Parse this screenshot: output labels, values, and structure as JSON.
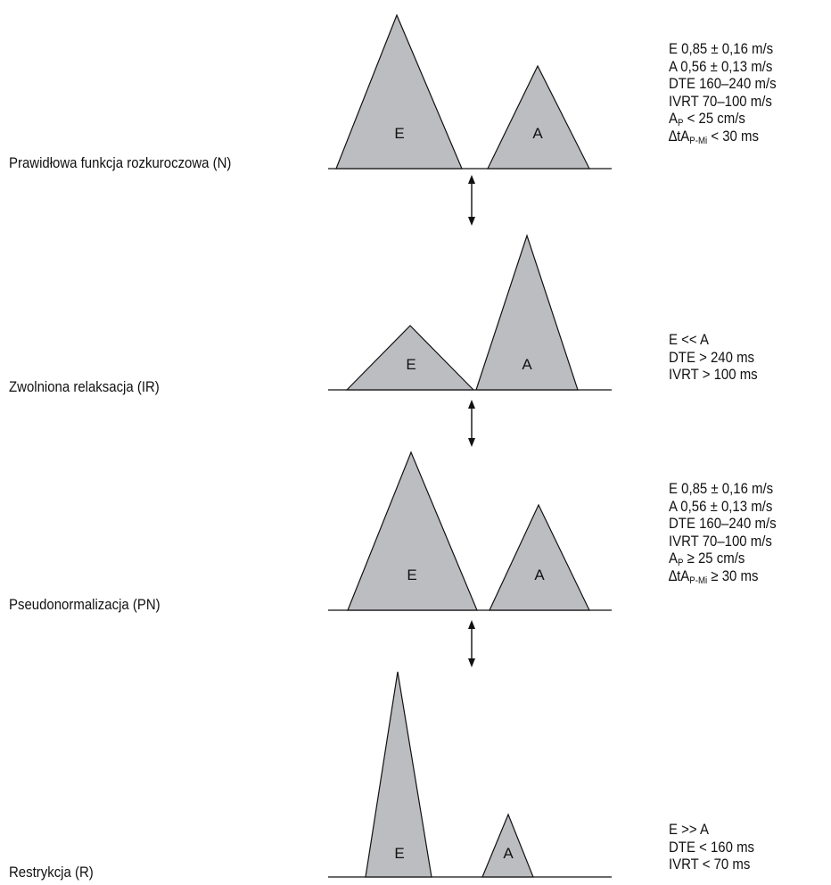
{
  "colors": {
    "wave_fill": "#bcbdc0",
    "stroke": "#111111"
  },
  "wave_labels": {
    "e": "E",
    "a": "A"
  },
  "icons": [
    "double-arrow-icon"
  ],
  "panels": [
    {
      "label": "Prawidłowa funkcja rozkuroczowa (N)",
      "params": [
        {
          "main": "E 0,85 ± 0,16 m/s"
        },
        {
          "main": "A 0,56 ± 0,13 m/s"
        },
        {
          "main": "DTE 160–240 m/s"
        },
        {
          "main": "IVRT 70–100 m/s"
        },
        {
          "pre": "A",
          "sub": "P",
          "post": " < 25 cm/s"
        },
        {
          "pre": "∆tA",
          "sub": "P-Mi",
          "post": " < 30 ms"
        }
      ]
    },
    {
      "label": "Zwolniona relaksacja (IR)",
      "params": [
        {
          "main": "E << A"
        },
        {
          "main": "DTE > 240 ms"
        },
        {
          "main": "IVRT > 100 ms"
        }
      ]
    },
    {
      "label": "Pseudonormalizacja (PN)",
      "params": [
        {
          "main": "E 0,85 ± 0,16 m/s"
        },
        {
          "main": "A 0,56 ± 0,13 m/s"
        },
        {
          "main": "DTE 160–240 m/s"
        },
        {
          "main": "IVRT 70–100 m/s"
        },
        {
          "pre": "A",
          "sub": "P",
          "post": " ≥ 25 cm/s"
        },
        {
          "pre": "∆tA",
          "sub": "P-Mi",
          "post": " ≥ 30 ms"
        }
      ]
    },
    {
      "label": "Restrykcja (R)",
      "params": [
        {
          "main": "E >> A"
        },
        {
          "main": "DTE < 160 ms"
        },
        {
          "main": "IVRT < 70 ms"
        }
      ]
    }
  ]
}
